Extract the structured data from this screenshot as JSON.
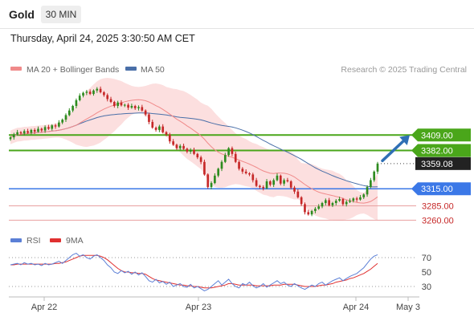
{
  "header": {
    "title": "Gold",
    "timeframe": "30 MIN",
    "datetime": "Thursday, April 24, 2025 3:30:50 AM CET"
  },
  "legend": {
    "ma20_label": "MA 20 + Bollinger Bands",
    "ma50_label": "MA 50",
    "credit": "Research © 2025 Trading Central"
  },
  "rsi_legend": {
    "rsi_label": "RSI",
    "ma9_label": "9MA"
  },
  "colors": {
    "candle_up": "#2e8b1f",
    "candle_down": "#c62828",
    "ma20": "#f08a8a",
    "bollinger_fill": "#fbd9d9",
    "ma50": "#4a6fa8",
    "resistance_green": "#4aa61a",
    "pivot_blue": "#3b78e7",
    "support_red": "#e8a0a0",
    "arrow": "#2f6fb5",
    "rsi": "#5b7fd6",
    "rsi_ma": "#e03030"
  },
  "chart_data": [
    {
      "type": "candlestick",
      "title": "",
      "symbol": "Gold",
      "timeframe": "30 MIN",
      "x_ticks": [
        "Apr 22",
        "Apr 23",
        "Apr 24",
        "May 3"
      ],
      "ylim": [
        3245,
        3505
      ],
      "price_levels": [
        {
          "label": "3409.00",
          "value": 3409,
          "kind": "resistance"
        },
        {
          "label": "3382.00",
          "value": 3382,
          "kind": "resistance"
        },
        {
          "label": "3359.08",
          "value": 3359.08,
          "kind": "last"
        },
        {
          "label": "3315.00",
          "value": 3315,
          "kind": "pivot"
        },
        {
          "label": "3285.00",
          "value": 3285,
          "kind": "support"
        },
        {
          "label": "3260.00",
          "value": 3260,
          "kind": "support"
        }
      ],
      "closes": [
        3405,
        3410,
        3414,
        3412,
        3416,
        3413,
        3418,
        3415,
        3420,
        3417,
        3423,
        3420,
        3426,
        3424,
        3431,
        3436,
        3444,
        3452,
        3460,
        3470,
        3478,
        3483,
        3485,
        3481,
        3487,
        3490,
        3484,
        3479,
        3472,
        3467,
        3460,
        3466,
        3461,
        3462,
        3457,
        3460,
        3456,
        3458,
        3452,
        3445,
        3432,
        3422,
        3418,
        3424,
        3414,
        3410,
        3398,
        3392,
        3386,
        3390,
        3385,
        3380,
        3383,
        3376,
        3370,
        3362,
        3340,
        3318,
        3325,
        3338,
        3350,
        3362,
        3374,
        3386,
        3376,
        3362,
        3350,
        3345,
        3342,
        3340,
        3330,
        3320,
        3318,
        3316,
        3328,
        3322,
        3330,
        3338,
        3324,
        3330,
        3328,
        3317,
        3310,
        3300,
        3288,
        3274,
        3270,
        3276,
        3280,
        3284,
        3290,
        3295,
        3286,
        3290,
        3294,
        3297,
        3288,
        3292,
        3294,
        3298,
        3296,
        3300,
        3305,
        3318,
        3330,
        3345,
        3359.08
      ],
      "arrow": {
        "from": 3364,
        "to": 3409
      }
    },
    {
      "type": "line",
      "title": "",
      "series": [
        {
          "name": "RSI"
        },
        {
          "name": "9MA"
        }
      ],
      "y_ticks": [
        70,
        50,
        30
      ],
      "ylim": [
        20,
        80
      ],
      "rsi": [
        60,
        61,
        62,
        60,
        63,
        61,
        62,
        60,
        61,
        59,
        62,
        60,
        61,
        63,
        65,
        62,
        66,
        70,
        74,
        76,
        72,
        74,
        70,
        68,
        72,
        74,
        70,
        66,
        60,
        56,
        50,
        48,
        52,
        49,
        51,
        47,
        50,
        46,
        49,
        44,
        38,
        36,
        40,
        35,
        37,
        33,
        36,
        30,
        32,
        34,
        30,
        29,
        33,
        28,
        30,
        27,
        24,
        26,
        30,
        34,
        38,
        32,
        36,
        40,
        34,
        30,
        28,
        34,
        32,
        36,
        31,
        28,
        30,
        34,
        29,
        32,
        35,
        38,
        34,
        36,
        32,
        30,
        34,
        31,
        28,
        26,
        29,
        32,
        30,
        34,
        36,
        32,
        35,
        38,
        40,
        42,
        38,
        41,
        44,
        46,
        48,
        52,
        56,
        62,
        68,
        72,
        74
      ],
      "ma9": [
        60,
        60,
        61,
        61,
        61,
        61,
        61,
        61,
        61,
        61,
        61,
        61,
        61,
        62,
        62,
        63,
        64,
        66,
        68,
        70,
        72,
        73,
        73,
        73,
        73,
        73,
        72,
        70,
        67,
        63,
        59,
        55,
        52,
        50,
        50,
        49,
        49,
        48,
        48,
        47,
        44,
        41,
        39,
        38,
        37,
        36,
        35,
        34,
        33,
        32,
        32,
        31,
        31,
        30,
        30,
        29,
        28,
        28,
        28,
        29,
        30,
        31,
        32,
        34,
        34,
        33,
        32,
        32,
        32,
        32,
        32,
        31,
        31,
        31,
        31,
        31,
        32,
        32,
        32,
        33,
        33,
        33,
        33,
        32,
        31,
        30,
        30,
        30,
        30,
        31,
        32,
        32,
        33,
        34,
        36,
        37,
        38,
        39,
        41,
        42,
        44,
        46,
        48,
        51,
        54,
        58,
        62
      ]
    }
  ]
}
